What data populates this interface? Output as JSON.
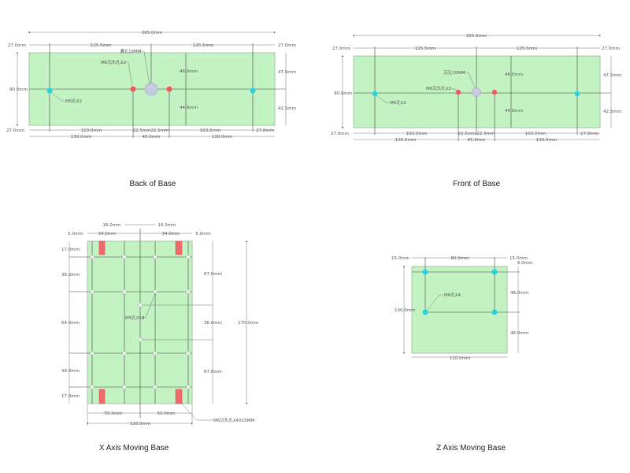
{
  "drawings": {
    "back": {
      "title": "Back of Base",
      "dims": {
        "total": "305.0mm",
        "left_margin": "27.0mm",
        "right_margin": "27.0mm",
        "half_left": "125.5mm",
        "half_right": "125.5mm",
        "height": "90.0mm",
        "upper": "46.0mm",
        "lower": "44.0mm",
        "right_upper": "47.5mm",
        "right_lower": "42.5mm",
        "bottom_left_margin": "27.0mm",
        "bottom_right_margin": "27.0mm",
        "seg_left": "103.0mm",
        "seg_right": "103.0mm",
        "small_left": "22.5mm",
        "small_right": "22.5mm",
        "outer_left": "130.0mm",
        "outer_right": "130.0mm",
        "center": "45.0mm"
      },
      "labels": {
        "center_hole": "通孔18MM",
        "red_holes": "M6沉头孔X2",
        "cyan_holes": "M5孔X2"
      }
    },
    "front": {
      "title": "Front of Base",
      "dims": {
        "total": "305.0mm",
        "left_margin": "27.0mm",
        "right_margin": "27.0mm",
        "half_left": "125.5mm",
        "half_right": "125.5mm",
        "height": "90.0mm",
        "upper": "46.0mm",
        "lower": "44.0mm",
        "right_upper": "47.5mm",
        "right_lower": "42.5mm",
        "bottom_left_margin": "27.0mm",
        "bottom_right_margin": "27.0mm",
        "seg_left": "103.0mm",
        "seg_right": "103.0mm",
        "small_left": "22.5mm",
        "small_right": "22.5mm",
        "outer_left": "130.0mm",
        "outer_right": "130.0mm",
        "center": "45.0mm"
      },
      "labels": {
        "center_hole": "沉孔10MM",
        "red_holes": "M6沉头孔X2",
        "cyan_holes": "M6孔X2"
      }
    },
    "x_axis": {
      "title": "X Axis Moving Base",
      "dims": {
        "top_l16": "16.0mm",
        "top_r16": "16.0mm",
        "l5": "5.0mm",
        "l34": "34.0mm",
        "r34": "34.0mm",
        "r5": "5.0mm",
        "v17a": "17.0mm",
        "v36a": "36.0mm",
        "v64": "64.0mm",
        "v36b": "36.0mm",
        "v17b": "17.0mm",
        "r67a": "67.0mm",
        "r36": "36.0mm",
        "r67b": "67.0mm",
        "total_h": "170.0mm",
        "b55l": "55.0mm",
        "b55r": "55.0mm",
        "total_w": "110.0mm"
      },
      "labels": {
        "small_holes": "M5孔X18",
        "slots": "M6沉头孔X4X15MM"
      }
    },
    "z_axis": {
      "title": "Z Axis Moving Base",
      "dims": {
        "l15": "15.0mm",
        "w80": "80.0mm",
        "r15": "15.0mm",
        "r6": "6.0mm",
        "r48": "48.0mm",
        "r46": "46.0mm",
        "h100": "100.0mm",
        "w110": "110.0mm"
      },
      "labels": {
        "holes": "M6孔X4"
      }
    }
  },
  "colors": {
    "plate": "#c3f2c3",
    "cyan_hole": "#22d3e0",
    "red_hole": "#ef5a5a",
    "center_hole": "#c8cbe0"
  }
}
